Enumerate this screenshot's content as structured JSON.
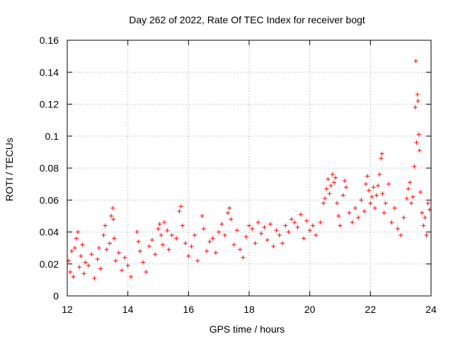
{
  "chart_data": {
    "type": "scatter",
    "title": "Day 262 of 2022, Rate Of TEC Index for receiver bogt",
    "xlabel": "GPS time / hours",
    "ylabel": "ROTI / TECUs",
    "xlim": [
      12,
      24
    ],
    "ylim": [
      0,
      0.16
    ],
    "xticks": [
      12,
      14,
      16,
      18,
      20,
      22,
      24
    ],
    "xtick_labels": [
      "12",
      "14",
      "16",
      "18",
      "20",
      "22",
      "24"
    ],
    "yticks": [
      0,
      0.02,
      0.04,
      0.06,
      0.08,
      0.1,
      0.12,
      0.14,
      0.16
    ],
    "ytick_labels": [
      "0",
      "0.02",
      "0.04",
      "0.06",
      "0.08",
      "0.1",
      "0.12",
      "0.14",
      "0.16"
    ],
    "grid": true,
    "marker": "+",
    "color": "#ff0000",
    "series": [
      {
        "name": "ROTI",
        "points": [
          [
            12.05,
            0.022
          ],
          [
            12.1,
            0.015
          ],
          [
            12.15,
            0.028
          ],
          [
            12.2,
            0.012
          ],
          [
            12.25,
            0.03
          ],
          [
            12.3,
            0.036
          ],
          [
            12.35,
            0.04
          ],
          [
            12.4,
            0.018
          ],
          [
            12.45,
            0.025
          ],
          [
            12.5,
            0.032
          ],
          [
            12.55,
            0.014
          ],
          [
            12.6,
            0.021
          ],
          [
            12.7,
            0.019
          ],
          [
            12.8,
            0.026
          ],
          [
            12.9,
            0.011
          ],
          [
            13.0,
            0.023
          ],
          [
            13.05,
            0.03
          ],
          [
            13.1,
            0.017
          ],
          [
            13.2,
            0.038
          ],
          [
            13.25,
            0.044
          ],
          [
            13.3,
            0.029
          ],
          [
            13.4,
            0.033
          ],
          [
            13.45,
            0.05
          ],
          [
            13.5,
            0.055
          ],
          [
            13.52,
            0.048
          ],
          [
            13.55,
            0.036
          ],
          [
            13.6,
            0.022
          ],
          [
            13.7,
            0.027
          ],
          [
            13.8,
            0.016
          ],
          [
            13.9,
            0.024
          ],
          [
            14.0,
            0.019
          ],
          [
            14.1,
            0.012
          ],
          [
            14.3,
            0.04
          ],
          [
            14.35,
            0.034
          ],
          [
            14.4,
            0.028
          ],
          [
            14.5,
            0.021
          ],
          [
            14.6,
            0.015
          ],
          [
            14.7,
            0.031
          ],
          [
            14.8,
            0.035
          ],
          [
            14.9,
            0.026
          ],
          [
            15.0,
            0.042
          ],
          [
            15.05,
            0.045
          ],
          [
            15.1,
            0.038
          ],
          [
            15.15,
            0.032
          ],
          [
            15.2,
            0.046
          ],
          [
            15.3,
            0.041
          ],
          [
            15.35,
            0.029
          ],
          [
            15.45,
            0.038
          ],
          [
            15.6,
            0.036
          ],
          [
            15.7,
            0.053
          ],
          [
            15.75,
            0.056
          ],
          [
            15.8,
            0.044
          ],
          [
            15.9,
            0.033
          ],
          [
            16.0,
            0.025
          ],
          [
            16.1,
            0.031
          ],
          [
            16.2,
            0.038
          ],
          [
            16.3,
            0.022
          ],
          [
            16.45,
            0.05
          ],
          [
            16.5,
            0.042
          ],
          [
            16.6,
            0.028
          ],
          [
            16.7,
            0.034
          ],
          [
            16.8,
            0.036
          ],
          [
            16.9,
            0.027
          ],
          [
            17.0,
            0.04
          ],
          [
            17.1,
            0.045
          ],
          [
            17.2,
            0.038
          ],
          [
            17.3,
            0.052
          ],
          [
            17.35,
            0.055
          ],
          [
            17.4,
            0.048
          ],
          [
            17.5,
            0.032
          ],
          [
            17.6,
            0.041
          ],
          [
            17.7,
            0.029
          ],
          [
            17.8,
            0.024
          ],
          [
            17.9,
            0.037
          ],
          [
            18.0,
            0.044
          ],
          [
            18.1,
            0.042
          ],
          [
            18.2,
            0.033
          ],
          [
            18.3,
            0.046
          ],
          [
            18.4,
            0.039
          ],
          [
            18.5,
            0.043
          ],
          [
            18.6,
            0.035
          ],
          [
            18.7,
            0.045
          ],
          [
            18.8,
            0.031
          ],
          [
            18.9,
            0.041
          ],
          [
            19.0,
            0.038
          ],
          [
            19.1,
            0.033
          ],
          [
            19.2,
            0.044
          ],
          [
            19.3,
            0.04
          ],
          [
            19.4,
            0.048
          ],
          [
            19.5,
            0.046
          ],
          [
            19.6,
            0.043
          ],
          [
            19.7,
            0.051
          ],
          [
            19.8,
            0.036
          ],
          [
            19.9,
            0.047
          ],
          [
            20.0,
            0.041
          ],
          [
            20.1,
            0.044
          ],
          [
            20.2,
            0.038
          ],
          [
            20.35,
            0.046
          ],
          [
            20.45,
            0.058
          ],
          [
            20.5,
            0.061
          ],
          [
            20.55,
            0.067
          ],
          [
            20.6,
            0.073
          ],
          [
            20.65,
            0.064
          ],
          [
            20.7,
            0.069
          ],
          [
            20.75,
            0.076
          ],
          [
            20.8,
            0.071
          ],
          [
            20.85,
            0.074
          ],
          [
            20.9,
            0.058
          ],
          [
            20.95,
            0.05
          ],
          [
            21.0,
            0.044
          ],
          [
            21.1,
            0.063
          ],
          [
            21.15,
            0.072
          ],
          [
            21.2,
            0.068
          ],
          [
            21.3,
            0.052
          ],
          [
            21.4,
            0.046
          ],
          [
            21.5,
            0.055
          ],
          [
            21.6,
            0.049
          ],
          [
            21.7,
            0.06
          ],
          [
            21.8,
            0.053
          ],
          [
            21.85,
            0.07
          ],
          [
            21.9,
            0.075
          ],
          [
            21.95,
            0.066
          ],
          [
            22.0,
            0.058
          ],
          [
            22.05,
            0.062
          ],
          [
            22.1,
            0.068
          ],
          [
            22.15,
            0.055
          ],
          [
            22.2,
            0.063
          ],
          [
            22.25,
            0.069
          ],
          [
            22.3,
            0.076
          ],
          [
            22.35,
            0.086
          ],
          [
            22.38,
            0.089
          ],
          [
            22.4,
            0.064
          ],
          [
            22.45,
            0.052
          ],
          [
            22.5,
            0.058
          ],
          [
            22.6,
            0.07
          ],
          [
            22.7,
            0.046
          ],
          [
            22.8,
            0.055
          ],
          [
            22.9,
            0.042
          ],
          [
            23.0,
            0.038
          ],
          [
            23.1,
            0.049
          ],
          [
            23.2,
            0.061
          ],
          [
            23.25,
            0.067
          ],
          [
            23.3,
            0.071
          ],
          [
            23.35,
            0.058
          ],
          [
            23.4,
            0.062
          ],
          [
            23.45,
            0.081
          ],
          [
            23.48,
            0.118
          ],
          [
            23.5,
            0.147
          ],
          [
            23.52,
            0.096
          ],
          [
            23.55,
            0.126
          ],
          [
            23.57,
            0.122
          ],
          [
            23.6,
            0.101
          ],
          [
            23.62,
            0.091
          ],
          [
            23.65,
            0.065
          ],
          [
            23.7,
            0.052
          ],
          [
            23.75,
            0.044
          ],
          [
            23.8,
            0.049
          ],
          [
            23.85,
            0.038
          ],
          [
            23.9,
            0.058
          ],
          [
            23.95,
            0.054
          ]
        ]
      }
    ]
  }
}
